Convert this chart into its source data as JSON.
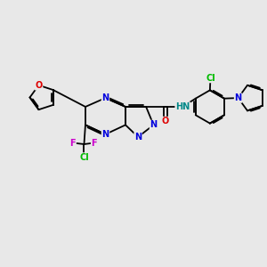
{
  "bg": "#e8e8e8",
  "bc": "#000000",
  "bw": 1.3,
  "dbo": 0.05,
  "fs": 7.0,
  "colors": {
    "N": "#0000dd",
    "O": "#dd0000",
    "F": "#cc00cc",
    "Cl": "#00bb00",
    "H": "#008888"
  },
  "xlim": [
    0.3,
    10.2
  ],
  "ylim": [
    3.2,
    8.5
  ]
}
